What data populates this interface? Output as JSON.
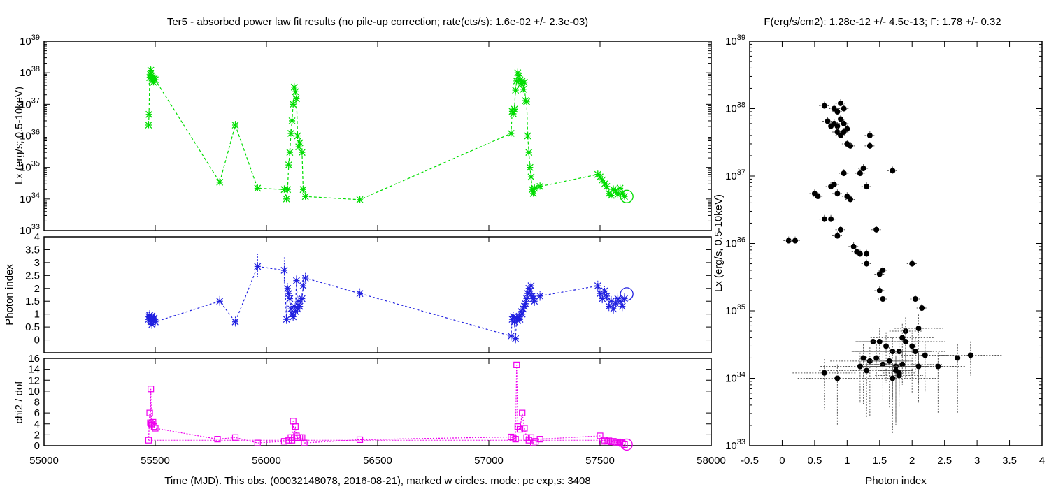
{
  "left_title": "Ter5  - absorbed power law fit results (no pile-up correction; rate(cts/s): 1.6e-02 +/- 2.3e-03)",
  "right_title_prefix": "F(erg/s/cm2): 1.28e-12 +/- 4.5e-13; ",
  "right_title_gamma": "Γ",
  "right_title_suffix": ": 1.78 +/- 0.32",
  "x_axis_label": "Time (MJD). This obs. (00032148078, 2016-08-21), marked w circles. mode: pc exp,s: 3408",
  "colors": {
    "lx": "#00dd00",
    "index": "#2020e0",
    "chi2": "#ee00ee",
    "scatter": "#000000"
  },
  "chart_data": [
    {
      "type": "line",
      "title": "",
      "ylabel": "Lx (erg/s; 0.5-10keV)",
      "yscale": "log",
      "ylim": [
        1e+33,
        1e+39
      ],
      "xlim": [
        55000,
        58000
      ],
      "y_ticks": [
        "33",
        "34",
        "35",
        "36",
        "37",
        "38",
        "39"
      ],
      "x": [
        55470,
        55472,
        55475,
        55478,
        55480,
        55483,
        55485,
        55487,
        55490,
        55492,
        55495,
        55500,
        55790,
        55860,
        55960,
        56080,
        56090,
        56095,
        56100,
        56105,
        56110,
        56115,
        56120,
        56125,
        56130,
        56135,
        56140,
        56145,
        56150,
        56160,
        56165,
        56175,
        56420,
        57100,
        57105,
        57110,
        57115,
        57120,
        57125,
        57130,
        57135,
        57140,
        57145,
        57150,
        57155,
        57160,
        57165,
        57170,
        57175,
        57180,
        57185,
        57190,
        57195,
        57200,
        57205,
        57230,
        57490,
        57500,
        57510,
        57520,
        57530,
        57540,
        57550,
        57560,
        57570,
        57580,
        57590,
        57600,
        57610
      ],
      "y": [
        2.2e+36,
        4.8e+36,
        7e+37,
        9e+37,
        1.2e+38,
        8e+37,
        5.5e+37,
        7e+37,
        6e+37,
        5e+37,
        6.5e+37,
        6e+37,
        3.4e+34,
        2.2e+36,
        2.2e+34,
        2e+34,
        1e+34,
        2e+34,
        1.2e+35,
        3e+35,
        1.2e+36,
        3e+36,
        1e+37,
        3.5e+37,
        2.5e+37,
        1.5e+37,
        1e+36,
        4.5e+35,
        6e+35,
        3e+35,
        2e+34,
        1.2e+34,
        9.5e+33,
        1.2e+36,
        6e+36,
        5e+36,
        7e+36,
        2.8e+37,
        5.5e+37,
        1e+38,
        8e+37,
        6e+37,
        4.5e+37,
        5.5e+37,
        3e+37,
        5e+37,
        1.3e+37,
        1.2e+37,
        1e+36,
        3e+35,
        1e+35,
        5e+34,
        2e+34,
        1.5e+34,
        2.2e+34,
        2.5e+34,
        6e+34,
        5e+34,
        4e+34,
        3e+34,
        2.5e+34,
        1.5e+34,
        1.3e+34,
        2e+34,
        1.8e+34,
        1.4e+34,
        2.2e+34,
        1.5e+34,
        1.2e+34
      ],
      "current_obs": {
        "x": 57620,
        "y": 1.2e+34
      }
    },
    {
      "type": "line",
      "title": "",
      "ylabel": "Photon index",
      "ylim": [
        -0.5,
        4
      ],
      "xlim": [
        55000,
        58000
      ],
      "y_ticks": [
        "0",
        "0.5",
        "1",
        "1.5",
        "2",
        "2.5",
        "3",
        "3.5",
        "4"
      ],
      "x": [
        55470,
        55472,
        55475,
        55478,
        55480,
        55483,
        55485,
        55487,
        55490,
        55492,
        55495,
        55500,
        55790,
        55860,
        55960,
        56080,
        56090,
        56095,
        56100,
        56105,
        56110,
        56115,
        56120,
        56125,
        56130,
        56135,
        56140,
        56145,
        56150,
        56160,
        56165,
        56175,
        56420,
        57100,
        57105,
        57110,
        57115,
        57120,
        57125,
        57130,
        57135,
        57140,
        57145,
        57150,
        57155,
        57160,
        57165,
        57170,
        57175,
        57180,
        57185,
        57190,
        57195,
        57200,
        57205,
        57230,
        57490,
        57500,
        57510,
        57520,
        57530,
        57540,
        57550,
        57560,
        57570,
        57580,
        57590,
        57600,
        57610
      ],
      "y": [
        0.8,
        0.9,
        0.95,
        0.8,
        0.7,
        0.85,
        0.6,
        0.9,
        0.75,
        0.8,
        0.85,
        0.7,
        1.5,
        0.7,
        2.85,
        2.7,
        0.8,
        2.0,
        1.8,
        1.6,
        1.2,
        1.0,
        0.9,
        1.3,
        1.1,
        2.3,
        1.2,
        1.5,
        1.3,
        1.6,
        2.1,
        2.4,
        1.8,
        0.15,
        0.8,
        0.9,
        0.7,
        0.05,
        0.85,
        0.75,
        0.9,
        0.8,
        1.1,
        1.0,
        1.2,
        1.3,
        1.4,
        1.6,
        1.8,
        2.0,
        1.9,
        2.1,
        1.7,
        1.6,
        1.5,
        1.7,
        2.1,
        1.8,
        1.6,
        1.9,
        1.7,
        1.3,
        1.5,
        1.2,
        1.4,
        1.6,
        1.5,
        1.3,
        1.6
      ],
      "current_obs": {
        "x": 57620,
        "y": 1.78
      }
    },
    {
      "type": "line",
      "title": "",
      "ylabel": "chi2 / dof",
      "ylim": [
        0,
        16
      ],
      "xlim": [
        55000,
        58000
      ],
      "x_ticks": [
        "55000",
        "55500",
        "56000",
        "56500",
        "57000",
        "57500",
        "58000"
      ],
      "y_ticks": [
        "0",
        "2",
        "4",
        "6",
        "8",
        "10",
        "12",
        "14",
        "16"
      ],
      "x": [
        55470,
        55475,
        55478,
        55480,
        55483,
        55485,
        55490,
        55495,
        55500,
        55780,
        55860,
        55960,
        56080,
        56100,
        56110,
        56115,
        56120,
        56125,
        56130,
        56135,
        56140,
        56150,
        56160,
        56170,
        56420,
        57100,
        57110,
        57120,
        57125,
        57130,
        57140,
        57150,
        57160,
        57170,
        57180,
        57190,
        57200,
        57210,
        57230,
        57500,
        57510,
        57520,
        57530,
        57540,
        57550,
        57560,
        57570,
        57580,
        57590,
        57600,
        57610
      ],
      "y": [
        1.0,
        6.0,
        4.2,
        10.4,
        4.0,
        3.8,
        4.3,
        3.5,
        3.2,
        1.2,
        1.5,
        0.5,
        0.8,
        1.0,
        1.5,
        1.0,
        4.5,
        1.5,
        3.5,
        1.8,
        1.4,
        1.5,
        1.5,
        0.5,
        1.1,
        1.6,
        1.4,
        1.2,
        14.8,
        3.5,
        3.0,
        6.0,
        3.2,
        1.5,
        1.0,
        1.5,
        0.5,
        0.8,
        1.2,
        1.8,
        0.8,
        1.0,
        0.8,
        0.9,
        0.7,
        0.8,
        0.5,
        0.7,
        0.6,
        0.4,
        0.2
      ],
      "current_obs": {
        "x": 57620,
        "y": 0.2
      }
    },
    {
      "type": "scatter",
      "title": "",
      "xlabel": "Photon index",
      "ylabel": "Lx (erg/s, 0.5-10keV)",
      "xlim": [
        -0.5,
        4
      ],
      "ylim": [
        1e+33,
        1e+39
      ],
      "yscale": "log",
      "x_ticks": [
        "-0.5",
        "0",
        "0.5",
        "1",
        "1.5",
        "2",
        "2.5",
        "3",
        "3.5",
        "4"
      ],
      "y_ticks": [
        "33",
        "34",
        "35",
        "36",
        "37",
        "38",
        "39"
      ],
      "x": [
        0.65,
        0.8,
        0.85,
        0.9,
        0.95,
        0.7,
        0.75,
        0.8,
        0.85,
        0.9,
        0.95,
        1.0,
        0.85,
        0.9,
        0.95,
        1.05,
        1.0,
        1.35,
        1.35,
        1.25,
        1.7,
        1.2,
        1.3,
        0.95,
        0.75,
        0.8,
        0.85,
        1.0,
        1.05,
        0.5,
        0.55,
        0.65,
        0.75,
        0.85,
        0.9,
        1.45,
        0.1,
        0.2,
        1.1,
        1.15,
        1.2,
        1.3,
        1.3,
        1.55,
        1.5,
        2.0,
        1.5,
        1.55,
        2.05,
        2.15,
        1.9,
        2.1,
        1.85,
        1.9,
        2.0,
        1.4,
        1.5,
        1.6,
        1.7,
        1.8,
        2.05,
        2.2,
        1.25,
        1.35,
        1.45,
        1.55,
        1.65,
        1.75,
        1.85,
        2.1,
        2.4,
        2.7,
        2.9,
        1.2,
        1.3,
        1.75,
        1.8,
        0.65,
        0.85,
        1.7,
        1.8
      ],
      "y": [
        1.1e+38,
        1e+38,
        9e+37,
        1.2e+38,
        1e+38,
        6.5e+37,
        5.5e+37,
        6e+37,
        5.5e+37,
        7e+37,
        6e+37,
        5e+37,
        4.5e+37,
        4e+37,
        4.5e+37,
        2.8e+37,
        3e+37,
        4e+37,
        2.8e+37,
        1.3e+37,
        1.2e+37,
        1.1e+37,
        7e+36,
        1.1e+37,
        7e+36,
        7.5e+36,
        5.5e+36,
        5e+36,
        4.5e+36,
        5.5e+36,
        5e+36,
        2.3e+36,
        2.3e+36,
        1.3e+36,
        1.6e+36,
        1.6e+36,
        1.1e+36,
        1.1e+36,
        9e+35,
        7.5e+35,
        7e+35,
        7e+35,
        5e+35,
        4e+35,
        3.5e+35,
        5e+35,
        2e+35,
        1.5e+35,
        1.5e+35,
        1.1e+35,
        5e+34,
        5.5e+34,
        4e+34,
        3.5e+34,
        3e+34,
        3.5e+34,
        3.5e+34,
        3e+34,
        2.5e+34,
        2.5e+34,
        2.5e+34,
        2.2e+34,
        2e+34,
        1.8e+34,
        2e+34,
        1.6e+34,
        1.8e+34,
        1.5e+34,
        1.6e+34,
        1.5e+34,
        1.5e+34,
        2e+34,
        2.2e+34,
        1.5e+34,
        1.3e+34,
        1.3e+34,
        1.1e+34,
        1.2e+34,
        1e+34,
        1e+34,
        1.2e+34
      ],
      "current_obs": {
        "x": 1.78,
        "y": 1.2e+34
      }
    }
  ]
}
